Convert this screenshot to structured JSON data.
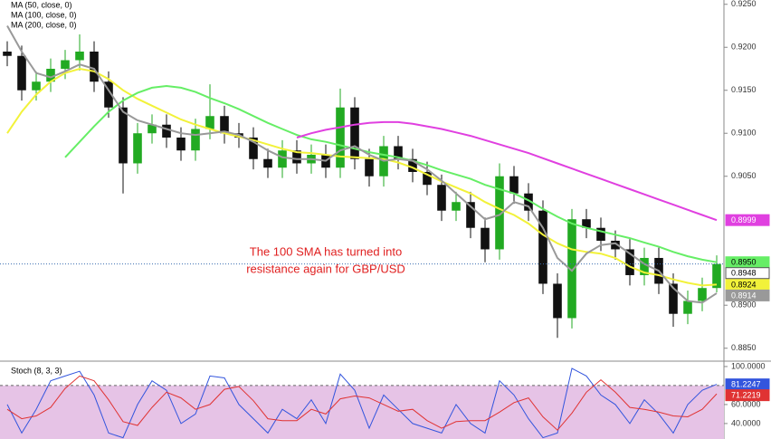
{
  "chart_data": {
    "type": "candlestick",
    "annotation": [
      "The 100 SMA has turned into",
      "resistance again for GBP/USD"
    ],
    "ylim": [
      0.8836,
      0.9255
    ],
    "yticks": [
      {
        "value": 0.925,
        "label": "0.9250"
      },
      {
        "value": 0.92,
        "label": "0.9200"
      },
      {
        "value": 0.915,
        "label": "0.9150"
      },
      {
        "value": 0.91,
        "label": "0.9100"
      },
      {
        "value": 0.905,
        "label": "0.9050"
      },
      {
        "value": 0.89,
        "label": "0.8900"
      },
      {
        "value": 0.885,
        "label": "0.8850"
      }
    ],
    "candles": {
      "up_color": "#22aa22",
      "down_color": "#111111",
      "last_label": "0.8948",
      "open": [
        0.9195,
        0.919,
        0.915,
        0.916,
        0.9175,
        0.9185,
        0.9195,
        0.916,
        0.913,
        0.9065,
        0.91,
        0.911,
        0.9095,
        0.908,
        0.9105,
        0.912,
        0.91,
        0.9095,
        0.907,
        0.906,
        0.908,
        0.9065,
        0.9075,
        0.906,
        0.913,
        0.907,
        0.905,
        0.9085,
        0.907,
        0.9055,
        0.904,
        0.901,
        0.902,
        0.899,
        0.8965,
        0.905,
        0.903,
        0.901,
        0.8925,
        0.8885,
        0.9,
        0.899,
        0.8975,
        0.8965,
        0.8935,
        0.8955,
        0.8925,
        0.889,
        0.8905,
        0.892
      ],
      "high": [
        0.9207,
        0.9202,
        0.9172,
        0.9187,
        0.9197,
        0.9215,
        0.9207,
        0.9172,
        0.9142,
        0.9112,
        0.9122,
        0.9122,
        0.9107,
        0.9117,
        0.9157,
        0.9132,
        0.9112,
        0.9107,
        0.9082,
        0.9092,
        0.9092,
        0.9087,
        0.9087,
        0.9152,
        0.9142,
        0.9082,
        0.9097,
        0.9097,
        0.9082,
        0.9067,
        0.9052,
        0.9032,
        0.9032,
        0.9002,
        0.9065,
        0.9062,
        0.9042,
        0.9022,
        0.8937,
        0.9012,
        0.9012,
        0.9002,
        0.8987,
        0.8977,
        0.8967,
        0.8967,
        0.8937,
        0.8917,
        0.8932,
        0.8958
      ],
      "low": [
        0.9178,
        0.9138,
        0.9138,
        0.9148,
        0.9163,
        0.9173,
        0.9148,
        0.9118,
        0.903,
        0.9053,
        0.9088,
        0.9083,
        0.9068,
        0.9068,
        0.9093,
        0.9088,
        0.9083,
        0.9058,
        0.9048,
        0.9048,
        0.9053,
        0.9053,
        0.9048,
        0.9048,
        0.9058,
        0.9038,
        0.9038,
        0.9058,
        0.9043,
        0.9028,
        0.8998,
        0.8998,
        0.8978,
        0.895,
        0.8953,
        0.9018,
        0.8998,
        0.8913,
        0.8862,
        0.8873,
        0.8978,
        0.8963,
        0.8953,
        0.8923,
        0.8923,
        0.8913,
        0.8875,
        0.8878,
        0.8893,
        0.8915
      ],
      "close": [
        0.919,
        0.915,
        0.916,
        0.9175,
        0.9185,
        0.9195,
        0.916,
        0.913,
        0.9065,
        0.91,
        0.911,
        0.9095,
        0.908,
        0.9105,
        0.912,
        0.91,
        0.9095,
        0.907,
        0.906,
        0.908,
        0.9065,
        0.9075,
        0.906,
        0.913,
        0.907,
        0.905,
        0.9085,
        0.907,
        0.9055,
        0.904,
        0.901,
        0.902,
        0.899,
        0.8965,
        0.905,
        0.903,
        0.901,
        0.8925,
        0.8885,
        0.9,
        0.899,
        0.8975,
        0.8965,
        0.8935,
        0.8955,
        0.8925,
        0.889,
        0.8905,
        0.892,
        0.8948
      ]
    },
    "series": [
      {
        "name": "MA (50, close, 0)",
        "color": "#f2f23a",
        "text_color": "#000000",
        "last_label": "0.8924",
        "values": [
          0.91,
          0.9125,
          0.9145,
          0.916,
          0.917,
          0.9175,
          0.9172,
          0.9163,
          0.915,
          0.914,
          0.9132,
          0.9124,
          0.9116,
          0.911,
          0.9105,
          0.91,
          0.9096,
          0.9092,
          0.9087,
          0.9082,
          0.9078,
          0.9077,
          0.9075,
          0.9073,
          0.9072,
          0.9071,
          0.907,
          0.9066,
          0.906,
          0.9052,
          0.9044,
          0.9037,
          0.903,
          0.902,
          0.9012,
          0.9005,
          0.8995,
          0.8982,
          0.8972,
          0.8965,
          0.8962,
          0.896,
          0.8955,
          0.8945,
          0.8938,
          0.8935,
          0.893,
          0.8926,
          0.8923,
          0.8924
        ]
      },
      {
        "name": "MA (100, close, 0)",
        "color": "#66ee66",
        "text_color": "#000000",
        "last_label": "0.8950",
        "values": [
          null,
          null,
          null,
          null,
          0.9072,
          0.909,
          0.9108,
          0.9125,
          0.9138,
          0.9147,
          0.9153,
          0.9155,
          0.9153,
          0.9148,
          0.9141,
          0.9135,
          0.9128,
          0.912,
          0.9112,
          0.9105,
          0.9098,
          0.9093,
          0.909,
          0.9086,
          0.9082,
          0.9078,
          0.9075,
          0.9072,
          0.9068,
          0.9063,
          0.9057,
          0.9052,
          0.9047,
          0.904,
          0.9035,
          0.903,
          0.9022,
          0.9012,
          0.9003,
          0.8995,
          0.899,
          0.8986,
          0.8982,
          0.8978,
          0.8973,
          0.8968,
          0.8962,
          0.8957,
          0.8953,
          0.895
        ]
      },
      {
        "name": "MA (200, close, 0)",
        "color": "#e040e0",
        "text_color": "#ffffff",
        "last_label": "0.8999",
        "values": [
          null,
          null,
          null,
          null,
          null,
          null,
          null,
          null,
          null,
          null,
          null,
          null,
          null,
          null,
          null,
          null,
          null,
          null,
          null,
          null,
          0.9095,
          0.91,
          0.9104,
          0.9107,
          0.911,
          0.9112,
          0.9113,
          0.9113,
          0.9111,
          0.9108,
          0.9105,
          0.9101,
          0.9097,
          0.9092,
          0.9087,
          0.9082,
          0.9077,
          0.9071,
          0.9065,
          0.9059,
          0.9053,
          0.9047,
          0.9041,
          0.9035,
          0.9029,
          0.9023,
          0.9017,
          0.9011,
          0.9005,
          0.8999
        ]
      },
      {
        "color": "#999999",
        "text_color": "#ffffff",
        "last_label": "0.8914",
        "values": [
          0.9225,
          0.9195,
          0.917,
          0.9165,
          0.9172,
          0.918,
          0.9175,
          0.915,
          0.9125,
          0.9115,
          0.911,
          0.9105,
          0.91,
          0.9098,
          0.91,
          0.9102,
          0.9098,
          0.909,
          0.908,
          0.9072,
          0.907,
          0.907,
          0.9068,
          0.908,
          0.9085,
          0.9075,
          0.9068,
          0.907,
          0.9068,
          0.9058,
          0.9045,
          0.903,
          0.9015,
          0.9,
          0.9005,
          0.902,
          0.9015,
          0.899,
          0.8955,
          0.894,
          0.896,
          0.897,
          0.8972,
          0.896,
          0.8948,
          0.894,
          0.892,
          0.8905,
          0.8903,
          0.8914
        ]
      }
    ],
    "stoch": {
      "title": "Stoch (8, 3, 3)",
      "ylim": [
        23.7,
        104.7
      ],
      "levels": [
        80,
        20
      ],
      "fill_color": "#e6c3e6",
      "yticks": [
        {
          "value": 100,
          "label": "100.0000"
        },
        {
          "value": 60,
          "label": "60.0000"
        },
        {
          "value": 40,
          "label": "40.0000"
        }
      ],
      "series": [
        {
          "color": "#3355dd",
          "values": [
            60,
            30,
            55,
            85,
            90,
            95,
            70,
            30,
            25,
            60,
            85,
            75,
            40,
            50,
            90,
            88,
            60,
            45,
            30,
            55,
            45,
            65,
            40,
            92,
            75,
            35,
            70,
            55,
            40,
            35,
            30,
            60,
            40,
            30,
            85,
            70,
            45,
            25,
            30,
            98,
            90,
            70,
            60,
            40,
            65,
            50,
            30,
            60,
            75,
            81.2247
          ]
        },
        {
          "color": "#e03333",
          "values": [
            55,
            45,
            48,
            57,
            77,
            90,
            85,
            65,
            42,
            38,
            57,
            73,
            67,
            55,
            60,
            76,
            79,
            64,
            45,
            43,
            43,
            55,
            50,
            66,
            69,
            67,
            60,
            53,
            55,
            43,
            35,
            42,
            43,
            43,
            52,
            62,
            67,
            47,
            33,
            51,
            73,
            86,
            73,
            57,
            55,
            52,
            48,
            47,
            55,
            71.2219
          ]
        }
      ]
    }
  }
}
